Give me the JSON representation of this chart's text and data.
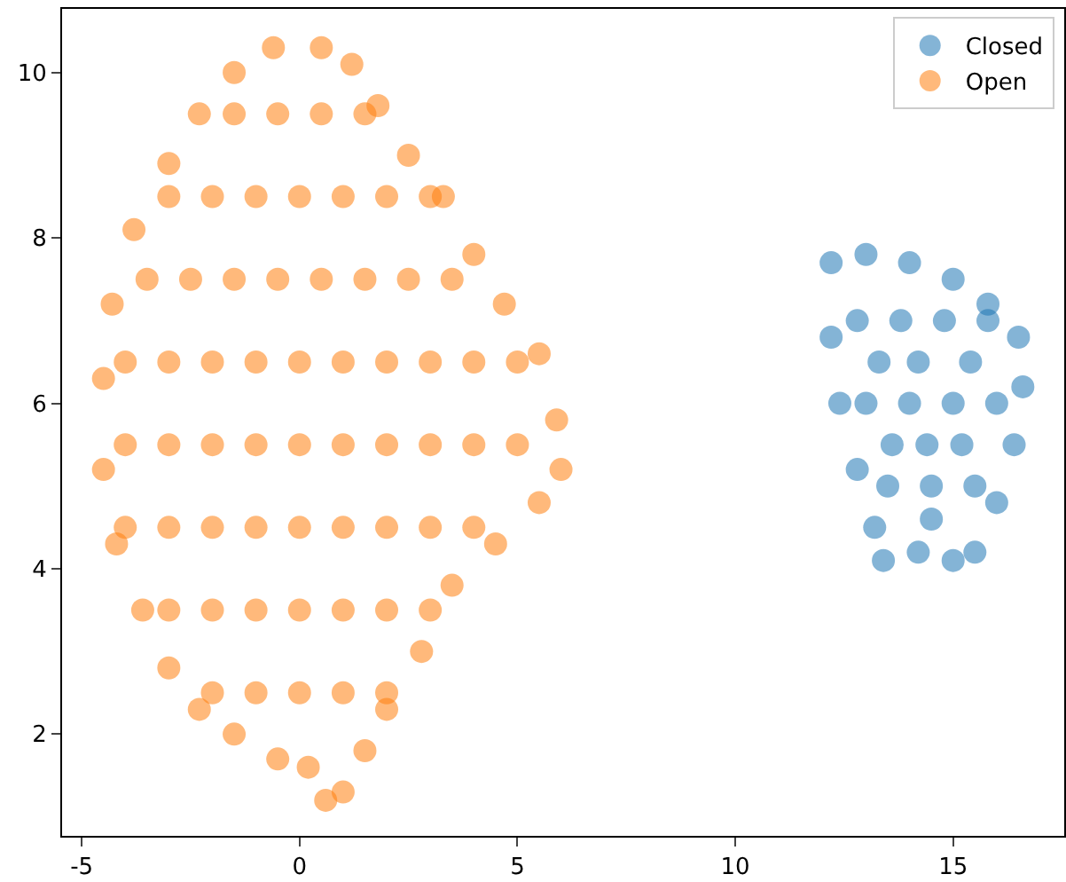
{
  "chart_data": {
    "type": "scatter",
    "legend": "top right",
    "marker": "circle",
    "xlim": [
      -5.45,
      17.55
    ],
    "ylim": [
      0.77,
      10.77
    ],
    "xticks": [
      -5,
      0,
      5,
      10,
      15
    ],
    "yticks": [
      2,
      4,
      6,
      8,
      10
    ],
    "series": [
      {
        "name": "Closed",
        "color": "#1f77b4",
        "x": [
          12.2,
          13.0,
          14.0,
          15.0,
          15.8,
          16.5,
          16.6,
          16.4,
          16.0,
          15.5,
          15.0,
          14.2,
          13.4,
          13.2,
          12.8,
          12.4,
          12.2,
          13.5,
          14.5,
          15.5,
          13.0,
          14.0,
          15.0,
          16.0,
          12.8,
          13.8,
          14.8,
          15.8,
          14.5,
          13.6,
          14.4,
          15.2,
          13.3,
          14.2,
          15.4
        ],
        "values": [
          7.7,
          7.8,
          7.7,
          7.5,
          7.2,
          6.8,
          6.2,
          5.5,
          4.8,
          4.2,
          4.1,
          4.2,
          4.1,
          4.5,
          5.2,
          6.0,
          6.8,
          5.0,
          5.0,
          5.0,
          6.0,
          6.0,
          6.0,
          6.0,
          7.0,
          7.0,
          7.0,
          7.0,
          4.6,
          5.5,
          5.5,
          5.5,
          6.5,
          6.5,
          6.5
        ]
      },
      {
        "name": "Open",
        "color": "#ff7f0e",
        "x": [
          0.5,
          1.2,
          1.8,
          2.5,
          3.3,
          4.0,
          4.7,
          5.5,
          5.9,
          6.0,
          5.5,
          4.5,
          3.5,
          2.8,
          2.0,
          1.5,
          1.0,
          0.6,
          0.2,
          -0.5,
          -1.5,
          -2.3,
          -3.0,
          -3.6,
          -4.2,
          -4.5,
          -4.5,
          -4.3,
          -3.8,
          -3.0,
          -2.3,
          -1.5,
          -0.6,
          -2,
          -1,
          0,
          1,
          2,
          -3,
          -2,
          -1,
          0,
          1,
          2,
          3,
          -4,
          -3,
          -2,
          -1,
          0,
          1,
          2,
          3,
          4,
          -4,
          -3,
          -2,
          -1,
          0,
          1,
          2,
          3,
          4,
          5,
          -4,
          -3,
          -2,
          -1,
          0,
          1,
          2,
          3,
          4,
          5,
          -3.5,
          -2.5,
          -1.5,
          -0.5,
          0.5,
          1.5,
          2.5,
          3.5,
          -3,
          -2,
          -1,
          0,
          1,
          2,
          3,
          -1.5,
          -0.5,
          0.5,
          1.5
        ],
        "values": [
          10.3,
          10.1,
          9.6,
          9.0,
          8.5,
          7.8,
          7.2,
          6.6,
          5.8,
          5.2,
          4.8,
          4.3,
          3.8,
          3.0,
          2.3,
          1.8,
          1.3,
          1.2,
          1.6,
          1.7,
          2.0,
          2.3,
          2.8,
          3.5,
          4.3,
          5.2,
          6.3,
          7.2,
          8.1,
          8.9,
          9.5,
          10.0,
          10.3,
          2.5,
          2.5,
          2.5,
          2.5,
          2.5,
          3.5,
          3.5,
          3.5,
          3.5,
          3.5,
          3.5,
          3.5,
          4.5,
          4.5,
          4.5,
          4.5,
          4.5,
          4.5,
          4.5,
          4.5,
          4.5,
          5.5,
          5.5,
          5.5,
          5.5,
          5.5,
          5.5,
          5.5,
          5.5,
          5.5,
          5.5,
          6.5,
          6.5,
          6.5,
          6.5,
          6.5,
          6.5,
          6.5,
          6.5,
          6.5,
          6.5,
          7.5,
          7.5,
          7.5,
          7.5,
          7.5,
          7.5,
          7.5,
          7.5,
          8.5,
          8.5,
          8.5,
          8.5,
          8.5,
          8.5,
          8.5,
          9.5,
          9.5,
          9.5,
          9.5
        ]
      }
    ]
  }
}
